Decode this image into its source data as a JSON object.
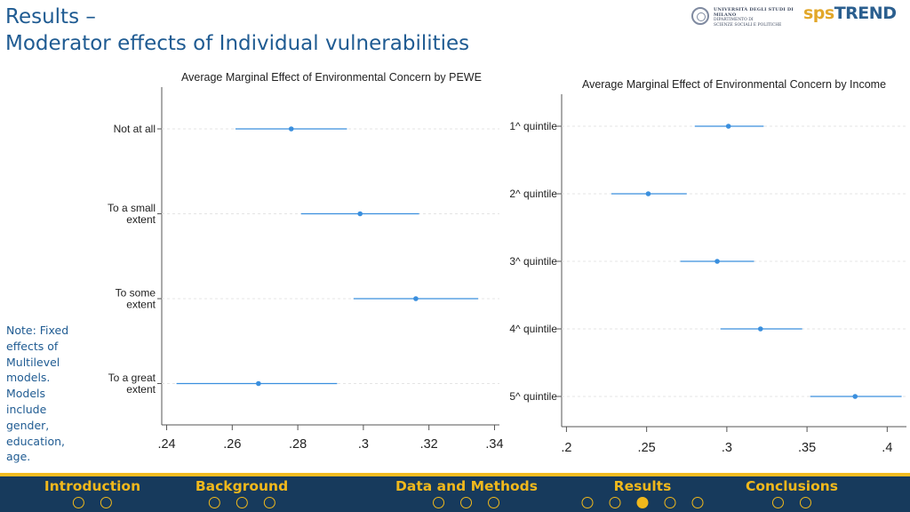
{
  "header": {
    "title_line1": "Results –",
    "title_line2": "Moderator effects of Individual vulnerabilities",
    "logo_university": {
      "line1": "UNIVERSITÀ DEGLI STUDI DI MILANO",
      "line2": "DIPARTIMENTO DI",
      "line3": "SCIENZE SOCIALI E POLITICHE"
    },
    "logo_brand_part1": "sps",
    "logo_brand_part2": "TREND"
  },
  "note": "Note: Fixed effects of Multilevel models. Models include gender, education, age.",
  "chart_data": [
    {
      "type": "scatter",
      "style": "coefficient-plot-horizontal-ci",
      "title": "Average Marginal Effect of Environmental Concern by PEWE",
      "categories": [
        [
          "Not at all"
        ],
        [
          "To a small",
          "extent"
        ],
        [
          "To some",
          "extent"
        ],
        [
          "To a great",
          "extent"
        ]
      ],
      "estimates": [
        0.278,
        0.299,
        0.316,
        0.268
      ],
      "ci_low": [
        0.261,
        0.281,
        0.297,
        0.243
      ],
      "ci_high": [
        0.295,
        0.317,
        0.335,
        0.292
      ],
      "xticks": [
        ".24",
        ".26",
        ".28",
        ".3",
        ".32",
        ".34"
      ],
      "xtick_values": [
        0.24,
        0.26,
        0.28,
        0.3,
        0.32,
        0.34
      ],
      "xlim": [
        0.2385,
        0.3415
      ],
      "grid": true,
      "color": "#3a8fde"
    },
    {
      "type": "scatter",
      "style": "coefficient-plot-horizontal-ci",
      "title": "Average Marginal Effect of Environmental Concern by Income",
      "categories": [
        [
          "1^ quintile"
        ],
        [
          "2^ quintile"
        ],
        [
          "3^ quintile"
        ],
        [
          "4^ quintile"
        ],
        [
          "5^ quintile"
        ]
      ],
      "estimates": [
        0.301,
        0.251,
        0.294,
        0.321,
        0.38
      ],
      "ci_low": [
        0.28,
        0.228,
        0.271,
        0.296,
        0.352
      ],
      "ci_high": [
        0.323,
        0.275,
        0.317,
        0.347,
        0.409
      ],
      "xticks": [
        ".2",
        ".25",
        ".3",
        ".35",
        ".4"
      ],
      "xtick_values": [
        0.2,
        0.25,
        0.3,
        0.35,
        0.4
      ],
      "xlim": [
        0.197,
        0.412
      ],
      "grid": true,
      "color": "#3a8fde"
    }
  ],
  "footer": {
    "sections": [
      {
        "label": "Introduction",
        "dots": 2,
        "active": -1
      },
      {
        "label": "Background",
        "dots": 3,
        "active": -1
      },
      {
        "label": "Data and Methods",
        "dots": 3,
        "active": -1
      },
      {
        "label": "Results",
        "dots": 5,
        "active": 2
      },
      {
        "label": "Conclusions",
        "dots": 2,
        "active": -1
      }
    ],
    "accent": "#f0b81c",
    "background": "#173a5c"
  }
}
